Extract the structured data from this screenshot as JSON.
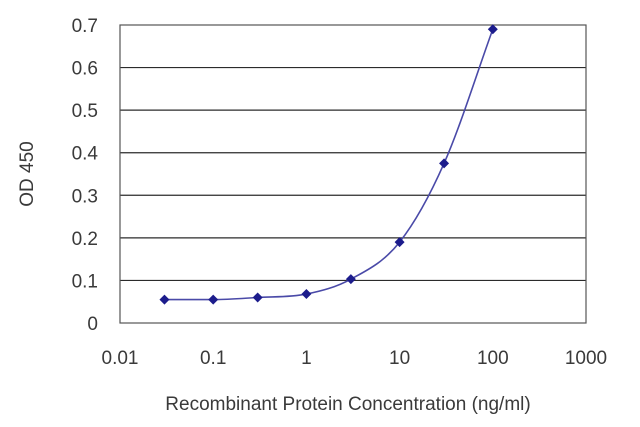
{
  "chart_data": {
    "type": "scatter",
    "title": "",
    "xlabel": "Recombinant Protein Concentration (ng/ml)",
    "ylabel": "OD 450",
    "x_scale": "log",
    "xlim": [
      0.01,
      1000
    ],
    "ylim": [
      0,
      0.7
    ],
    "x_ticks": [
      "0.01",
      "0.1",
      "1",
      "10",
      "100",
      "1000"
    ],
    "y_ticks": [
      "0",
      "0.1",
      "0.2",
      "0.3",
      "0.4",
      "0.5",
      "0.6",
      "0.7"
    ],
    "grid": "horizontal",
    "legend": "none",
    "series": [
      {
        "x": [
          0.03,
          0.1,
          0.3,
          1,
          3,
          10,
          30,
          100
        ],
        "y": [
          0.055,
          0.055,
          0.06,
          0.068,
          0.103,
          0.19,
          0.375,
          0.69
        ]
      }
    ],
    "colors": {
      "line": "#4a4aa8",
      "marker": "#1c1c8c",
      "grid": "#2b2b2b"
    }
  }
}
